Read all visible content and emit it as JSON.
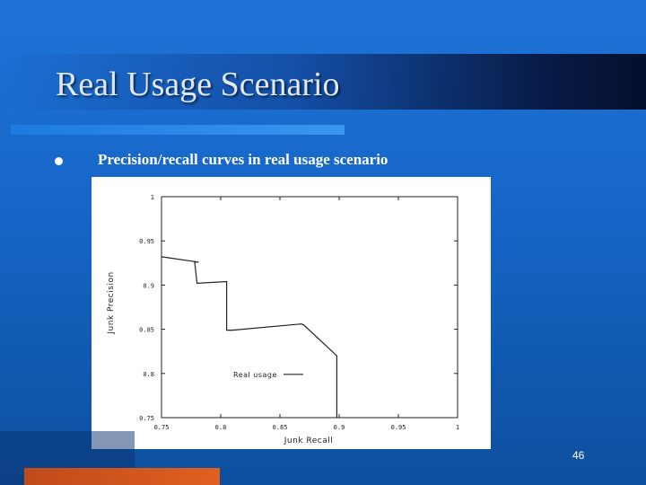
{
  "slide": {
    "title": "Real Usage Scenario",
    "bullet": "Precision/recall curves in real usage scenario",
    "page_number": "46",
    "colors": {
      "background": "#1565c6",
      "accent_bar": "#2a88e8",
      "bottom_bar": "#d4561c"
    }
  },
  "chart_data": {
    "type": "line",
    "xlabel": "Junk Recall",
    "ylabel": "Junk Precision",
    "xlim": [
      0.75,
      1.0
    ],
    "ylim": [
      0.75,
      1.0
    ],
    "x_ticks": [
      "0.75",
      "0.8",
      "0.85",
      "0.9",
      "0.95",
      "1"
    ],
    "y_ticks": [
      "0.75",
      "0.8",
      "0.85",
      "0.9",
      "0.95",
      "1"
    ],
    "grid": false,
    "legend_position": "center-left",
    "series": [
      {
        "name": "Real usage",
        "points": [
          [
            0.75,
            0.932
          ],
          [
            0.781,
            0.926
          ],
          [
            0.778,
            0.926
          ],
          [
            0.78,
            0.902
          ],
          [
            0.805,
            0.904
          ],
          [
            0.805,
            0.849
          ],
          [
            0.81,
            0.849
          ],
          [
            0.868,
            0.856
          ],
          [
            0.87,
            0.855
          ],
          [
            0.898,
            0.82
          ],
          [
            0.898,
            0.75
          ]
        ]
      }
    ]
  }
}
